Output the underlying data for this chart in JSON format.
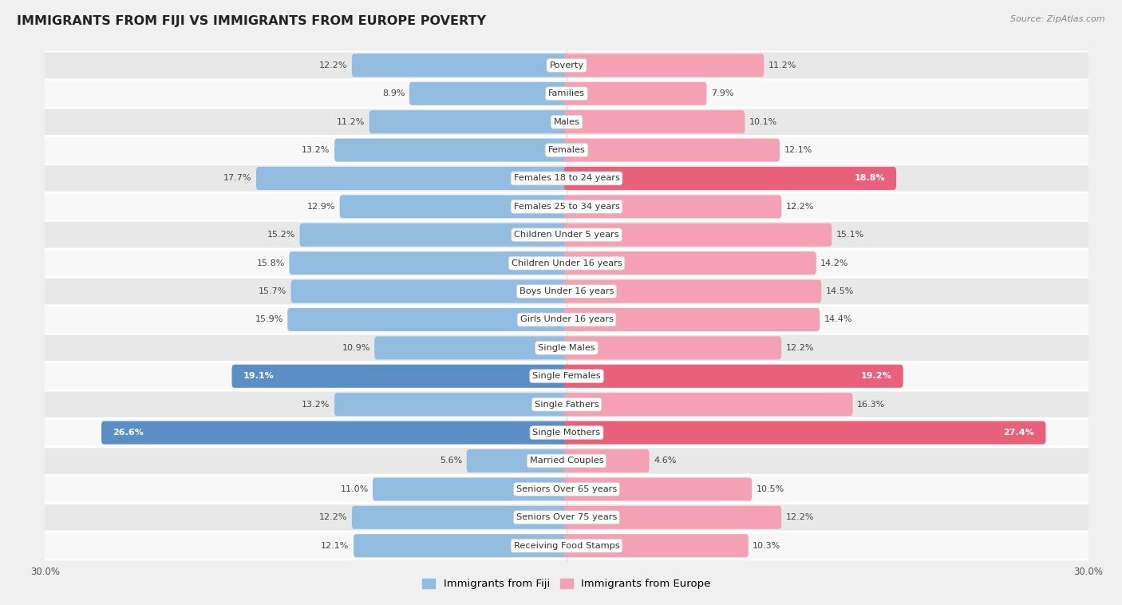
{
  "title": "IMMIGRANTS FROM FIJI VS IMMIGRANTS FROM EUROPE POVERTY",
  "source": "Source: ZipAtlas.com",
  "categories": [
    "Poverty",
    "Families",
    "Males",
    "Females",
    "Females 18 to 24 years",
    "Females 25 to 34 years",
    "Children Under 5 years",
    "Children Under 16 years",
    "Boys Under 16 years",
    "Girls Under 16 years",
    "Single Males",
    "Single Females",
    "Single Fathers",
    "Single Mothers",
    "Married Couples",
    "Seniors Over 65 years",
    "Seniors Over 75 years",
    "Receiving Food Stamps"
  ],
  "fiji_values": [
    12.2,
    8.9,
    11.2,
    13.2,
    17.7,
    12.9,
    15.2,
    15.8,
    15.7,
    15.9,
    10.9,
    19.1,
    13.2,
    26.6,
    5.6,
    11.0,
    12.2,
    12.1
  ],
  "europe_values": [
    11.2,
    7.9,
    10.1,
    12.1,
    18.8,
    12.2,
    15.1,
    14.2,
    14.5,
    14.4,
    12.2,
    19.2,
    16.3,
    27.4,
    4.6,
    10.5,
    12.2,
    10.3
  ],
  "fiji_color": "#92bde0",
  "europe_color": "#f4a0b5",
  "fiji_highlight_indices": [
    11,
    13
  ],
  "europe_highlight_indices": [
    4,
    11,
    13
  ],
  "fiji_highlight_color": "#5b8ec4",
  "europe_highlight_color": "#e8607a",
  "xlim": 30.0,
  "background_color": "#f0f0f0",
  "row_bg_light": "#f8f8f8",
  "row_bg_dark": "#e8e8e8",
  "bar_height": 0.52,
  "label_fontsize": 8.2,
  "value_fontsize": 8.0,
  "title_fontsize": 11.5
}
